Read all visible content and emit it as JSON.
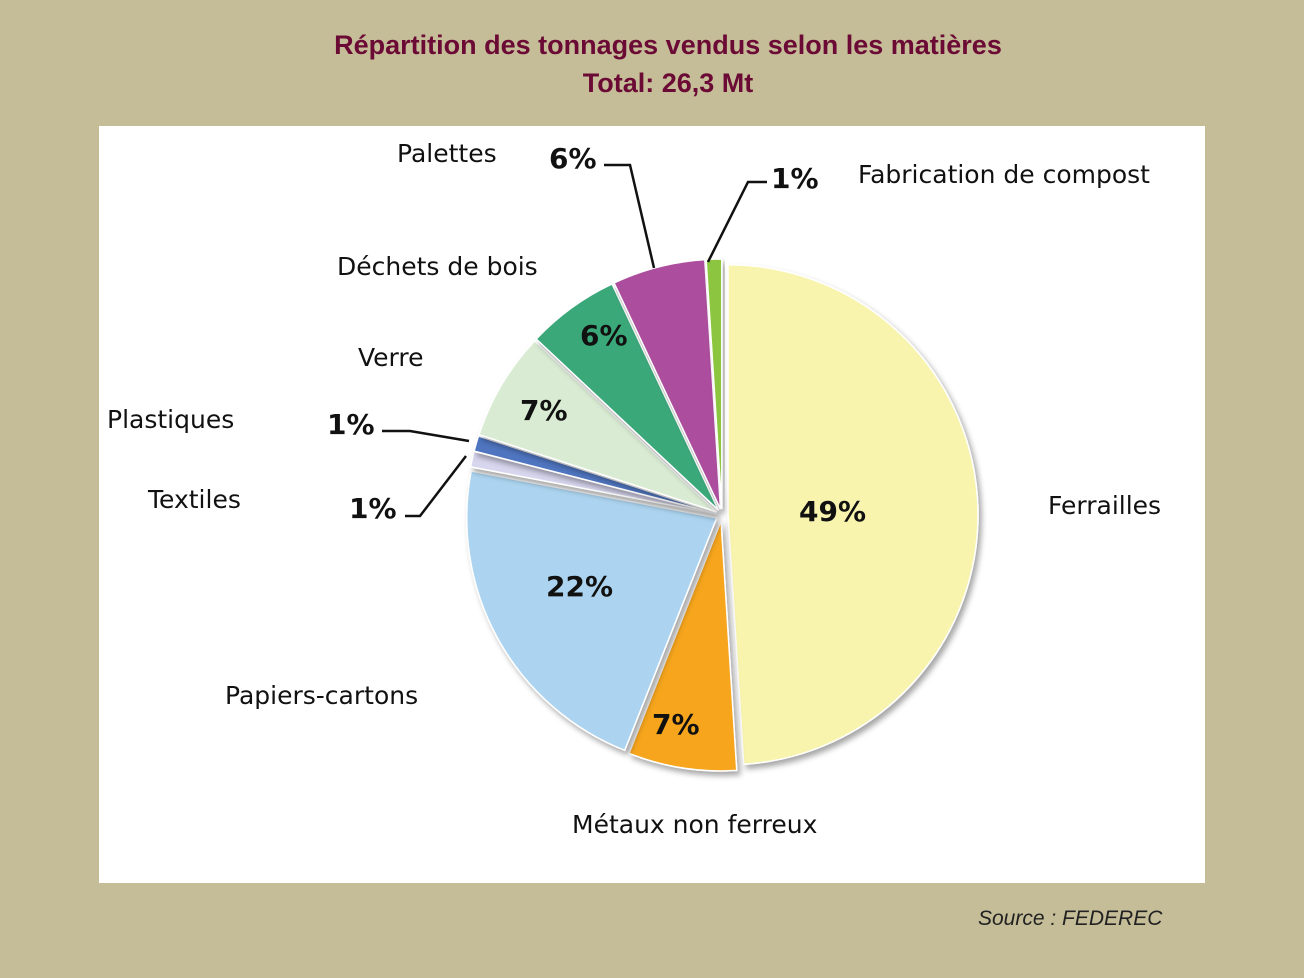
{
  "header": {
    "title": "Répartition des tonnages vendus selon les matières",
    "subtitle": "Total: 26,3 Mt"
  },
  "footer": {
    "source": "Source : FEDEREC"
  },
  "colors": {
    "background": "#c5bd98",
    "title": "#6b0a34",
    "panel": "#ffffff"
  },
  "chart_data": {
    "type": "pie",
    "title": "Répartition des tonnages vendus selon les matières",
    "subtitle": "Total: 26,3 Mt",
    "source": "Source : FEDEREC",
    "unit": "%",
    "categories": [
      "Ferrailles",
      "Métaux non ferreux",
      "Papiers-cartons",
      "Textiles",
      "Plastiques",
      "Verre",
      "Déchets de bois",
      "Palettes",
      "Fabrication de compost"
    ],
    "values": [
      49,
      7,
      22,
      1,
      1,
      7,
      6,
      6,
      1
    ],
    "value_labels": [
      "49%",
      "7%",
      "22%",
      "1%",
      "1%",
      "7%",
      "6%",
      "6%",
      "1%"
    ],
    "colors": [
      "#f8f4ae",
      "#f6a51e",
      "#acd4f0",
      "#d8d6ee",
      "#4f74c0",
      "#d9ebd3",
      "#3aa87a",
      "#ac4e9e",
      "#8cc63f"
    ],
    "start_angle_deg": 0,
    "direction": "clockwise",
    "legend": "none (labels placed around slices)"
  }
}
